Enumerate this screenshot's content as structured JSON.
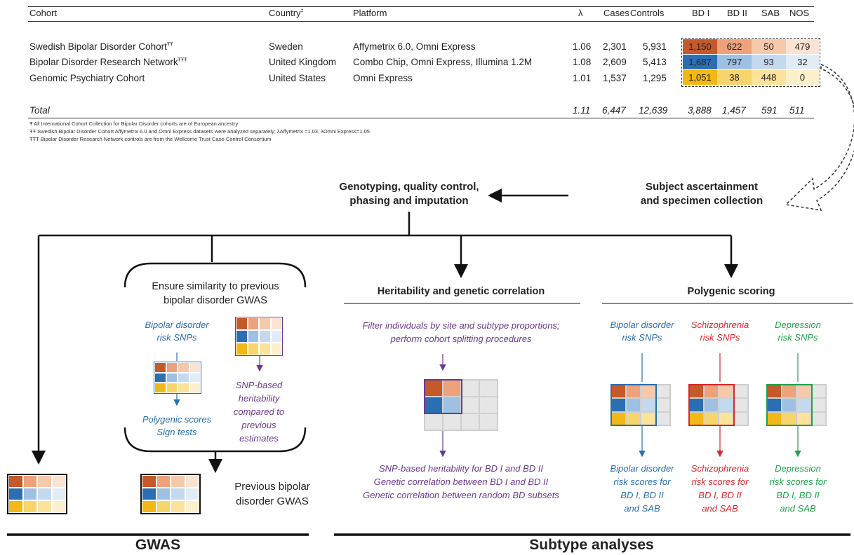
{
  "table": {
    "headers": {
      "cohort": "Cohort",
      "country": "Country",
      "country_mark": "‡",
      "platform": "Platform",
      "lambda": "λ",
      "cases": "Cases",
      "controls": "Controls",
      "bd1": "BD I",
      "bd2": "BD II",
      "sab": "SAB",
      "nos": "NOS"
    },
    "rows": [
      {
        "cohort": "Swedish Bipolar Disorder Cohort",
        "mark": "ŦŦ",
        "country": "Sweden",
        "platform": "Affymetrix 6.0, Omni Express",
        "lambda": "1.06",
        "cases": "2,301",
        "controls": "5,931",
        "bd1": "1,150",
        "bd2": "622",
        "sab": "50",
        "nos": "479"
      },
      {
        "cohort": "Bipolar Disorder Research Network",
        "mark": "ŦŦŦ",
        "country": "United Kingdom",
        "platform": "Combo Chip, Omni Express, Illumina 1.2M",
        "lambda": "1.08",
        "cases": "2,609",
        "controls": "5,413",
        "bd1": "1,687",
        "bd2": "797",
        "sab": "93",
        "nos": "32"
      },
      {
        "cohort": "Genomic Psychiatry Cohort",
        "mark": "",
        "country": "United States",
        "platform": "Omni Express",
        "lambda": "1.01",
        "cases": "1,537",
        "controls": "1,295",
        "bd1": "1,051",
        "bd2": "38",
        "sab": "448",
        "nos": "0"
      }
    ],
    "total": {
      "label": "Total",
      "lambda": "1.11",
      "cases": "6,447",
      "controls": "12,639",
      "bd1": "3,888",
      "bd2": "1,457",
      "sab": "591",
      "nos": "511"
    },
    "footnotes": [
      "Ŧ All International Cohort Collection for Bipolar Disorder cohorts are of European ancestry",
      "ŦŦ Swedish Bipolar Disorder Cohort Affymetrix 6.0 and Omni Express datasets were analyzed separately; λAffymetrix =1.03, λOmni Express=1.05",
      "ŦŦŦ Bipolar Disorder Research Network controls are from the Wellcome Trust Case-Control Consortium"
    ]
  },
  "flow": {
    "subject_line1": "Subject ascertainment",
    "subject_line2": "and specimen collection",
    "genotyping_line1": "Genotyping, quality control,",
    "genotyping_line2": "phasing and imputation"
  },
  "gwas_panel": {
    "ensure_line1": "Ensure similarity to previous",
    "ensure_line2": "bipolar disorder GWAS",
    "risk_line1": "Bipolar disorder",
    "risk_line2": "risk SNPs",
    "snp_lines": [
      "SNP-based",
      "heritability",
      "compared to",
      "previous",
      "estimates"
    ],
    "poly_line1": "Polygenic scores",
    "poly_line2": "Sign tests",
    "plus": "+",
    "prev_line1": "Previous bipolar",
    "prev_line2": "disorder GWAS"
  },
  "heritability": {
    "title": "Heritability and genetic correlation",
    "filter_line1": "Filter individuals by site and subtype proportions;",
    "filter_line2": "perform cohort splitting procedures",
    "out_lines": [
      "SNP-based heritability for BD I and BD II",
      "Genetic correlation between BD I and BD II",
      "Genetic correlation between random BD subsets"
    ]
  },
  "polygenic": {
    "title": "Polygenic scoring",
    "bd_top": [
      "Bipolar disorder",
      "risk SNPs"
    ],
    "scz_top": [
      "Schizophrenia",
      "risk SNPs"
    ],
    "dep_top": [
      "Depression",
      "risk SNPs"
    ],
    "bd_bottom": [
      "Bipolar disorder",
      "risk scores for",
      "BD I, BD II",
      "and SAB"
    ],
    "scz_bottom": [
      "Schizophrenia",
      "risk scores for",
      "BD I, BD II",
      "and SAB"
    ],
    "dep_bottom": [
      "Depression",
      "risk scores for",
      "BD I, BD II",
      "and SAB"
    ]
  },
  "sections": {
    "gwas": "GWAS",
    "subtype": "Subtype analyses"
  },
  "colors": {
    "blue": "#2a6fb0",
    "purple": "#6b3a8e",
    "red": "#d9262b",
    "green": "#1ea34a",
    "orange": "#c45a2a",
    "yellow": "#f2b817"
  }
}
